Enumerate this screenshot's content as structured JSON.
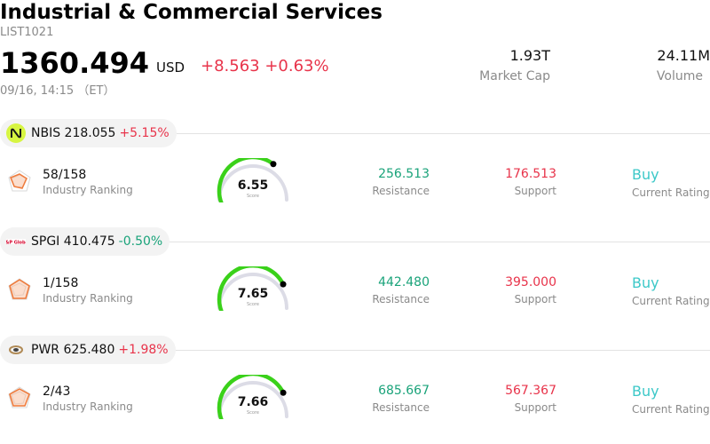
{
  "header": {
    "title": "Industrial & Commercial Services",
    "code": "LIST1021",
    "price": "1360.494",
    "currency": "USD",
    "change": "+8.563 +0.63%",
    "time": "09/16, 14:15 （ET）",
    "market_cap": {
      "value": "1.93T",
      "label": "Market Cap"
    },
    "volume": {
      "value": "24.11M",
      "label": "Volume"
    }
  },
  "colors": {
    "up": "#e8334a",
    "down": "#1aa37a",
    "rating": "#3cc8c8",
    "gauge_green": "#3ad11a",
    "gauge_track": "#dcdce6",
    "radar_orange": "#f07a3a"
  },
  "stocks": [
    {
      "ticker": "NBIS",
      "price": "218.055",
      "change": "+5.15%",
      "direction": "up",
      "logo_icon": "nebius-logo-icon",
      "ranking": "58/158",
      "ranking_label": "Industry Ranking",
      "score": "6.55",
      "score_value": 6.55,
      "score_label": "Score",
      "resistance": "256.513",
      "resistance_label": "Resistance",
      "support": "176.513",
      "support_label": "Support",
      "rating": "Buy",
      "rating_label": "Current Rating"
    },
    {
      "ticker": "SPGI",
      "price": "410.475",
      "change": "-0.50%",
      "direction": "down",
      "logo_icon": "spglobal-logo-icon",
      "ranking": "1/158",
      "ranking_label": "Industry Ranking",
      "score": "7.65",
      "score_value": 7.65,
      "score_label": "Score",
      "resistance": "442.480",
      "resistance_label": "Resistance",
      "support": "395.000",
      "support_label": "Support",
      "rating": "Buy",
      "rating_label": "Current Rating"
    },
    {
      "ticker": "PWR",
      "price": "625.480",
      "change": "+1.98%",
      "direction": "up",
      "logo_icon": "quanta-logo-icon",
      "ranking": "2/43",
      "ranking_label": "Industry Ranking",
      "score": "7.66",
      "score_value": 7.66,
      "score_label": "Score",
      "resistance": "685.667",
      "resistance_label": "Resistance",
      "support": "567.367",
      "support_label": "Support",
      "rating": "Buy",
      "rating_label": "Current Rating"
    }
  ]
}
